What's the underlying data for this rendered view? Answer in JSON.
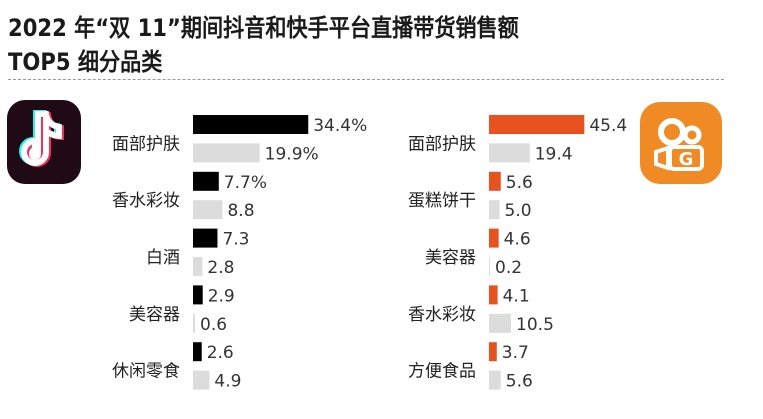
{
  "title": {
    "line1": "2022 年“双 11”期间抖音和快手平台直播带货销售额",
    "line2": "TOP5 细分品类"
  },
  "logos": {
    "left": "douyin-logo",
    "right": "kuaishou-logo"
  },
  "chart_data": [
    {
      "type": "bar",
      "orientation": "horizontal",
      "platform_logo": "douyin-logo",
      "categories": [
        "面部护肤",
        "香水彩妆",
        "白酒",
        "美容器",
        "休闲零食"
      ],
      "series": [
        {
          "values": [
            34.4,
            7.7,
            7.3,
            2.9,
            2.6
          ],
          "labels": [
            "34.4%",
            "7.7%",
            "7.3",
            "2.9",
            "2.6"
          ],
          "color": "#000000"
        },
        {
          "values": [
            19.9,
            8.8,
            2.8,
            0.6,
            4.9
          ],
          "labels": [
            "19.9%",
            "8.8",
            "2.8",
            "0.6",
            "4.9"
          ],
          "color": "#dcdcdc"
        }
      ]
    },
    {
      "type": "bar",
      "orientation": "horizontal",
      "platform_logo": "kuaishou-logo",
      "categories": [
        "面部护肤",
        "蛋糕饼干",
        "美容器",
        "香水彩妆",
        "方便食品"
      ],
      "series": [
        {
          "values": [
            45.4,
            5.6,
            4.6,
            4.1,
            3.7
          ],
          "labels": [
            "45.4",
            "5.6",
            "4.6",
            "4.1",
            "3.7"
          ],
          "color": "#e8521e"
        },
        {
          "values": [
            19.4,
            5.0,
            0.2,
            10.5,
            5.6
          ],
          "labels": [
            "19.4",
            "5.0",
            "0.2",
            "10.5",
            "5.6"
          ],
          "color": "#dcdcdc"
        }
      ]
    }
  ]
}
